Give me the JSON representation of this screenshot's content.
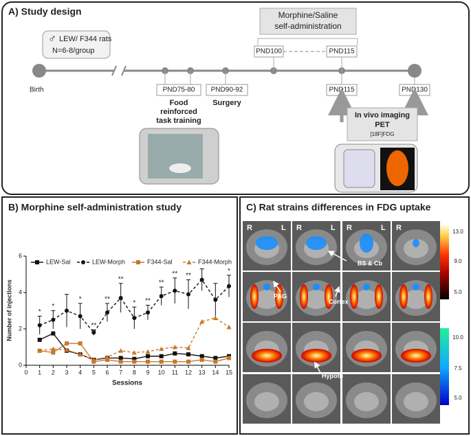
{
  "panel_a": {
    "title": "A) Study design",
    "sex_symbol": "♂",
    "rats": [
      "LEW/ F344 rats",
      "N=6-8/group"
    ],
    "birth": "Birth",
    "pnd75": "PND75-80",
    "training": [
      "Food",
      "reinforced",
      "task training"
    ],
    "pnd90": "PND90-92",
    "surgery": "Surgery",
    "pnd100": "PND100",
    "pnd115_top": "PND115",
    "self_admin": [
      "Morphine/Saline",
      "self-administration"
    ],
    "pnd115_bottom": "PND115",
    "pnd130": "PND130",
    "imaging": [
      "In vivo imaging",
      "PET",
      "[18F]FDG"
    ]
  },
  "chart_data": {
    "type": "line",
    "title": "B) Morphine self-administration study",
    "xlabel": "Sessions",
    "ylabel": "Number of injections",
    "x": [
      1,
      2,
      3,
      4,
      5,
      6,
      7,
      8,
      9,
      10,
      11,
      12,
      13,
      14,
      15
    ],
    "xlim": [
      0,
      15
    ],
    "xticks": [
      0,
      1,
      2,
      3,
      4,
      5,
      6,
      7,
      8,
      9,
      10,
      11,
      12,
      13,
      14,
      15
    ],
    "ylim": [
      0,
      6
    ],
    "yticks": [
      0,
      2,
      4,
      6
    ],
    "legend": "top",
    "series": [
      {
        "name": "LEW-Sal",
        "color": "#111111",
        "dash": false,
        "marker": "square",
        "values": [
          1.4,
          1.75,
          0.8,
          0.6,
          0.3,
          0.4,
          0.4,
          0.35,
          0.5,
          0.5,
          0.65,
          0.6,
          0.5,
          0.4,
          0.5
        ]
      },
      {
        "name": "LEW-Morph",
        "color": "#111111",
        "dash": true,
        "marker": "circle",
        "values": [
          2.2,
          2.5,
          3.0,
          2.7,
          1.8,
          2.9,
          3.7,
          2.6,
          2.9,
          3.8,
          4.1,
          3.9,
          4.7,
          3.6,
          4.35
        ],
        "errors": [
          0.5,
          0.5,
          0.9,
          0.7,
          0.15,
          0.5,
          0.8,
          0.6,
          0.4,
          0.5,
          0.7,
          0.8,
          0.6,
          0.9,
          0.6
        ]
      },
      {
        "name": "F344-Sal",
        "color": "#c8782a",
        "dash": false,
        "marker": "square",
        "values": [
          0.8,
          0.7,
          1.2,
          1.2,
          0.2,
          0.3,
          0.2,
          0.2,
          0.2,
          0.2,
          0.2,
          0.2,
          0.3,
          0.2,
          0.4
        ]
      },
      {
        "name": "F344-Morph",
        "color": "#c8782a",
        "dash": true,
        "marker": "triangle",
        "values": [
          0.8,
          0.9,
          0.85,
          0.6,
          0.3,
          0.45,
          0.8,
          0.7,
          0.75,
          0.9,
          1.0,
          0.95,
          2.4,
          2.6,
          2.1
        ]
      }
    ],
    "significance": [
      "*",
      "*",
      null,
      "*",
      "**",
      "**",
      "**",
      "*",
      "**",
      "**",
      "**",
      "**",
      null,
      null,
      "*"
    ]
  },
  "panel_c": {
    "title": "C) Rat strains differences in FDG uptake",
    "right": "R",
    "left": "L",
    "annotations": [
      "BS & Cb",
      "PAG",
      "Cortex",
      "Hypoth"
    ],
    "colorbar_hot": [
      "13.0",
      "9.0",
      "5.0"
    ],
    "colorbar_cool": [
      "10.0",
      "7.5",
      "5.0"
    ]
  }
}
